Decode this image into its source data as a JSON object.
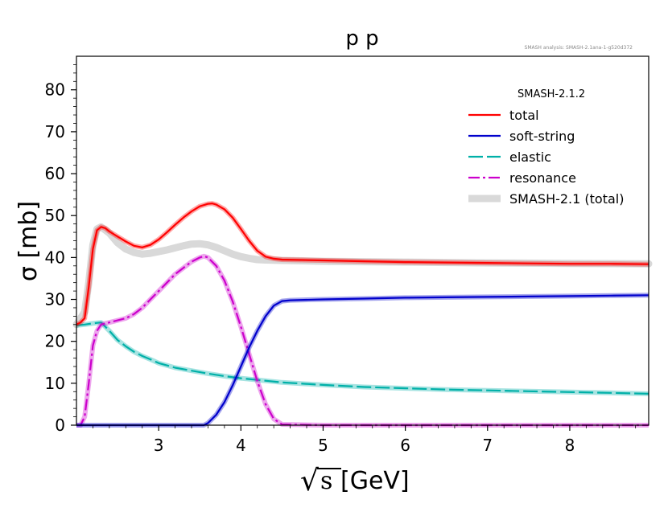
{
  "chart_data": {
    "type": "line",
    "title": "p p",
    "annotation": "SMASH analysis: SMASH-2.1ana-1-g520d372",
    "xlabel": "√s[GeV]",
    "xlabel_radical": "√",
    "xlabel_var": "s",
    "xlabel_unit": "[GeV]",
    "ylabel": "σ [mb]",
    "xlim": [
      2.0,
      8.96
    ],
    "ylim": [
      0,
      88
    ],
    "x_ticks": [
      3,
      4,
      5,
      6,
      7,
      8
    ],
    "y_ticks": [
      0,
      10,
      20,
      30,
      40,
      50,
      60,
      70,
      80
    ],
    "legend_title": "SMASH-2.1.2",
    "series": [
      {
        "name": "total",
        "color": "#ff0000",
        "dash": "",
        "x": [
          2.0,
          2.05,
          2.1,
          2.15,
          2.2,
          2.25,
          2.3,
          2.35,
          2.4,
          2.5,
          2.6,
          2.7,
          2.8,
          2.9,
          3.0,
          3.1,
          3.2,
          3.3,
          3.4,
          3.5,
          3.6,
          3.65,
          3.7,
          3.8,
          3.9,
          4.0,
          4.1,
          4.2,
          4.3,
          4.4,
          4.5,
          5.0,
          5.5,
          6.0,
          6.5,
          7.0,
          7.5,
          8.0,
          8.5,
          8.96
        ],
        "y": [
          24.0,
          24.5,
          25.5,
          33.0,
          42.0,
          46.5,
          47.3,
          47.0,
          46.2,
          45.0,
          43.8,
          42.8,
          42.4,
          43.0,
          44.3,
          46.0,
          47.8,
          49.5,
          51.0,
          52.2,
          52.8,
          52.9,
          52.6,
          51.5,
          49.5,
          46.8,
          44.0,
          41.6,
          40.2,
          39.7,
          39.5,
          39.3,
          39.1,
          38.9,
          38.8,
          38.7,
          38.6,
          38.5,
          38.5,
          38.4
        ]
      },
      {
        "name": "soft-string",
        "color": "#0000cc",
        "dash": "",
        "x": [
          2.0,
          3.2,
          3.45,
          3.55,
          3.6,
          3.7,
          3.8,
          3.9,
          4.0,
          4.1,
          4.2,
          4.3,
          4.4,
          4.5,
          4.6,
          5.0,
          5.5,
          6.0,
          6.5,
          7.0,
          7.5,
          8.0,
          8.5,
          8.96
        ],
        "y": [
          0,
          0,
          0,
          0,
          0.5,
          2.5,
          5.5,
          9.5,
          14.0,
          18.5,
          22.5,
          26.0,
          28.5,
          29.6,
          29.8,
          30.0,
          30.2,
          30.4,
          30.5,
          30.6,
          30.7,
          30.8,
          30.9,
          31.0
        ]
      },
      {
        "name": "elastic",
        "color": "#00b0a8",
        "dash": "18 5",
        "x": [
          2.0,
          2.1,
          2.2,
          2.3,
          2.4,
          2.5,
          2.6,
          2.7,
          2.8,
          2.9,
          3.0,
          3.2,
          3.4,
          3.6,
          3.8,
          4.0,
          4.5,
          5.0,
          5.5,
          6.0,
          6.5,
          7.0,
          7.5,
          8.0,
          8.5,
          8.96
        ],
        "y": [
          23.8,
          24.0,
          24.3,
          24.5,
          22.5,
          20.3,
          18.8,
          17.5,
          16.5,
          15.7,
          14.8,
          13.7,
          13.0,
          12.3,
          11.7,
          11.2,
          10.2,
          9.6,
          9.1,
          8.8,
          8.5,
          8.3,
          8.1,
          7.9,
          7.7,
          7.5
        ]
      },
      {
        "name": "resonance",
        "color": "#cc00cc",
        "dash": "14 4 3 4",
        "x": [
          2.0,
          2.05,
          2.1,
          2.15,
          2.2,
          2.25,
          2.3,
          2.4,
          2.5,
          2.6,
          2.7,
          2.8,
          2.9,
          3.0,
          3.1,
          3.2,
          3.3,
          3.4,
          3.5,
          3.55,
          3.6,
          3.7,
          3.8,
          3.9,
          4.0,
          4.1,
          4.2,
          4.3,
          4.4,
          4.5,
          5.0,
          6.0,
          7.0,
          8.0,
          8.96
        ],
        "y": [
          0,
          0,
          2.0,
          10.0,
          19.0,
          22.5,
          24.0,
          24.5,
          25.0,
          25.5,
          26.5,
          28.0,
          30.0,
          32.0,
          34.0,
          36.0,
          37.5,
          39.0,
          40.0,
          40.3,
          40.0,
          38.0,
          34.5,
          29.5,
          23.5,
          17.0,
          10.5,
          5.0,
          1.5,
          0.2,
          0,
          0,
          0,
          0,
          0
        ]
      },
      {
        "name": "SMASH-2.1 (total)",
        "color": "#d9d9d9",
        "dash": "",
        "x": [
          2.0,
          2.1,
          2.15,
          2.2,
          2.25,
          2.3,
          2.4,
          2.5,
          2.6,
          2.7,
          2.8,
          2.9,
          3.0,
          3.1,
          3.2,
          3.3,
          3.4,
          3.5,
          3.6,
          3.7,
          3.8,
          3.9,
          4.0,
          4.1,
          4.2,
          4.3,
          4.5,
          5.0,
          6.0,
          7.0,
          8.0,
          8.96
        ],
        "y": [
          24.0,
          27.0,
          34.0,
          43.0,
          46.8,
          47.3,
          45.8,
          43.5,
          42.0,
          41.2,
          40.8,
          41.0,
          41.4,
          41.8,
          42.3,
          42.8,
          43.2,
          43.3,
          43.0,
          42.4,
          41.6,
          40.8,
          40.2,
          39.8,
          39.5,
          39.4,
          39.3,
          39.1,
          38.9,
          38.7,
          38.6,
          38.5
        ]
      }
    ]
  }
}
